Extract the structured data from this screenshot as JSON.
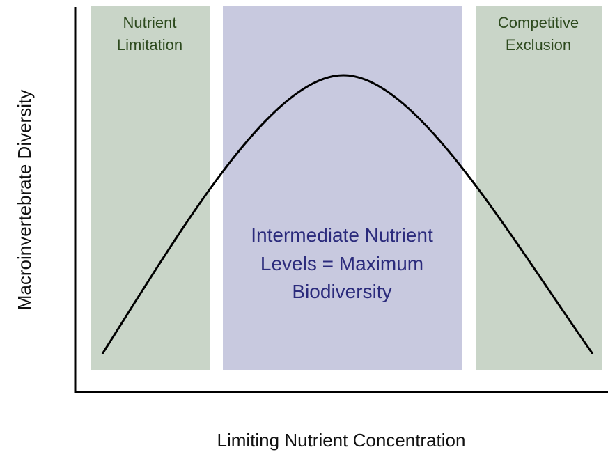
{
  "regions": [
    {
      "lines": [
        "Nutrient",
        "Limitation"
      ]
    },
    {
      "lines": [
        "Intermediate Nutrient",
        "Levels = Maximum",
        "Biodiversity"
      ]
    },
    {
      "lines": [
        "Competitive",
        "Exclusion"
      ]
    }
  ],
  "axes": {
    "x_label": "Limiting Nutrient Concentration",
    "y_label": "Macroinvertebrate Diversity"
  }
}
